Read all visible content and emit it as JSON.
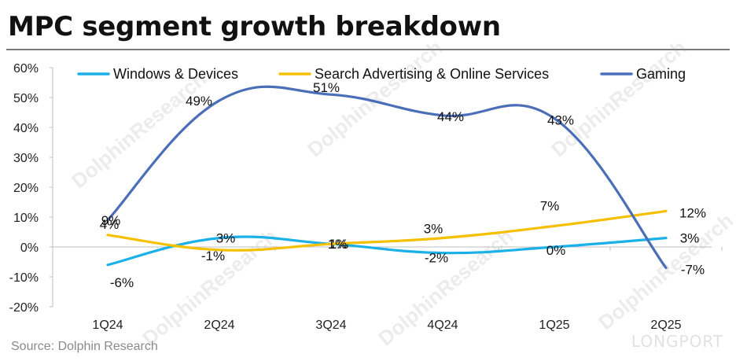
{
  "page": {
    "title": "MPC segment growth breakdown",
    "source": "Source: Dolphin Research",
    "watermark": "DolphinResearch",
    "brand_mark": "LONGPORT"
  },
  "chart_data": {
    "type": "line",
    "title": "MPC segment growth breakdown",
    "xlabel": "",
    "ylabel": "",
    "categories": [
      "1Q24",
      "2Q24",
      "3Q24",
      "4Q24",
      "1Q25",
      "2Q25"
    ],
    "y_ticks": [
      "60%",
      "50%",
      "40%",
      "30%",
      "20%",
      "10%",
      "0%",
      "-10%",
      "-20%"
    ],
    "ylim": [
      -20,
      60
    ],
    "grid": false,
    "legend_position": "top",
    "series": [
      {
        "name": "Windows & Devices",
        "color": "#1ab0e8",
        "values": [
          -6,
          3,
          1,
          -2,
          0,
          3
        ],
        "labels": [
          "-6%",
          "3%",
          "1%",
          "-2%",
          "0%",
          "3%"
        ]
      },
      {
        "name": "Search Advertising & Online Services",
        "color": "#f5c000",
        "values": [
          4,
          -1,
          1,
          3,
          7,
          12
        ],
        "labels": [
          "4%",
          "-1%",
          "1%",
          "3%",
          "7%",
          "12%"
        ]
      },
      {
        "name": "Gaming",
        "color": "#4a6fb8",
        "values": [
          9,
          49,
          51,
          44,
          43,
          -7
        ],
        "labels": [
          "9%",
          "49%",
          "51%",
          "44%",
          "43%",
          "-7%"
        ]
      }
    ]
  }
}
